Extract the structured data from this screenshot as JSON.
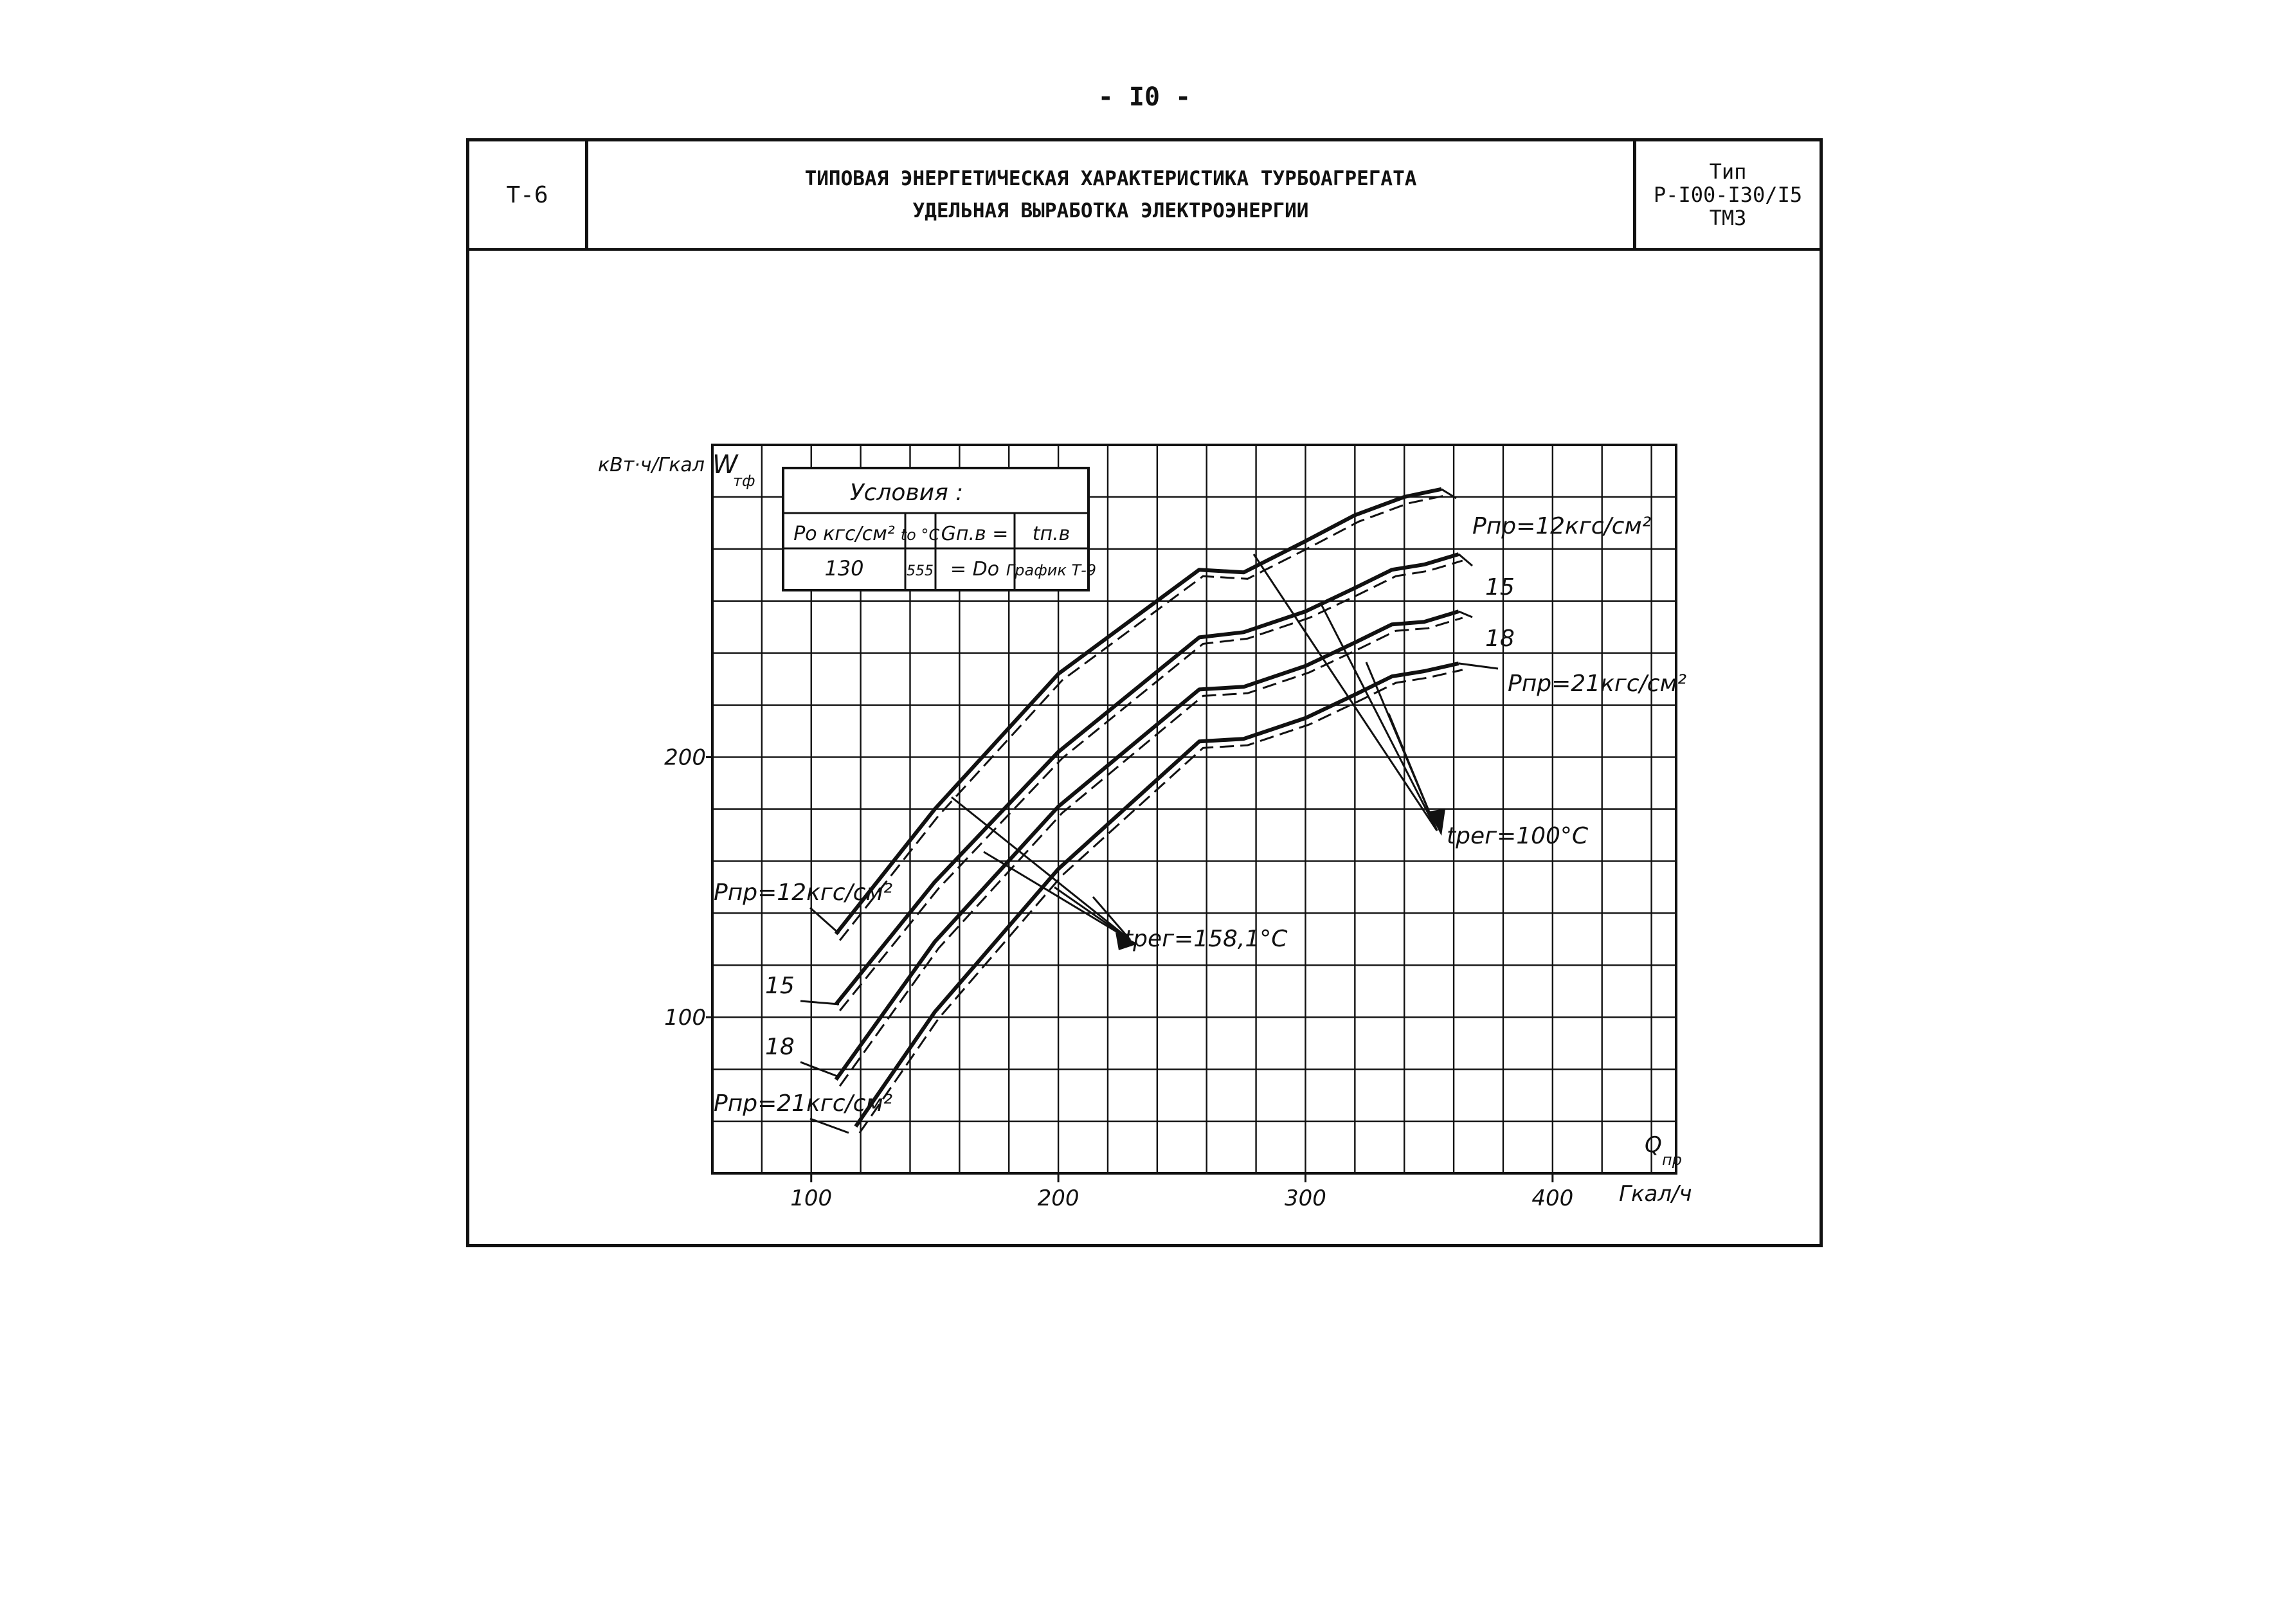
{
  "page": {
    "number": "- I0 -"
  },
  "header": {
    "code": "Т-6",
    "title_line1": "ТИПОВАЯ ЭНЕРГЕТИЧЕСКАЯ ХАРАКТЕРИСТИКА ТУРБОАГРЕГАТА",
    "title_line2": "УДЕЛЬНАЯ ВЫРАБОТКА ЭЛЕКТРОЭНЕРГИИ",
    "type_label": "Тип",
    "type_model": "Р-I00-I30/I5",
    "type_maker": "ТМЗ"
  },
  "conditions": {
    "title": "Условия :",
    "col1_header": "Pо кгс/см²",
    "col2_header": "tо °C",
    "col3_header": "Gп.в =",
    "col4_header": "tп.в",
    "col1_value": "130",
    "col2_value": "555",
    "col3_value": "= Dо",
    "col4_value": "График Т-9"
  },
  "chart_data": {
    "type": "line",
    "ylabel": "кВт·ч/Гкал",
    "ylabel_symbol": "W",
    "ylabel_symbol_sub": "тф",
    "xlabel": "Гкал/ч",
    "xlabel_symbol": "Q",
    "xlabel_symbol_sub": "пр",
    "xlim": [
      60,
      450
    ],
    "ylim": [
      40,
      320
    ],
    "x_ticks": [
      100,
      200,
      300,
      400
    ],
    "y_ticks": [
      100,
      200
    ],
    "grid": true,
    "series": [
      {
        "name": "Pпр=12кгс/см²",
        "label_left": "Pпр=12кгс/см²",
        "label_right": "Pпр=12кгс/см²",
        "x": [
          110,
          150,
          200,
          257,
          275,
          300,
          320,
          340,
          355
        ],
        "y": [
          132,
          180,
          232,
          272,
          271,
          283,
          293,
          300,
          303
        ]
      },
      {
        "name": "15",
        "label_left": "15",
        "label_right": "15",
        "x": [
          110,
          150,
          200,
          257,
          275,
          300,
          320,
          335,
          348,
          362
        ],
        "y": [
          105,
          152,
          202,
          246,
          248,
          256,
          265,
          272,
          274,
          278
        ]
      },
      {
        "name": "18",
        "label_left": "18",
        "label_right": "18",
        "x": [
          110,
          150,
          200,
          257,
          275,
          300,
          320,
          335,
          348,
          362
        ],
        "y": [
          76,
          129,
          181,
          226,
          227,
          235,
          244,
          251,
          252,
          256
        ]
      },
      {
        "name": "Pпр=21кгс/см²",
        "label_left": "Pпр=21кгс/см²",
        "label_right": "Pпр=21кгс/см²",
        "x": [
          118,
          150,
          200,
          257,
          275,
          300,
          320,
          335,
          348,
          362
        ],
        "y": [
          58,
          102,
          157,
          206,
          207,
          215,
          224,
          231,
          233,
          236
        ]
      }
    ],
    "annotations": {
      "t_reg_158": "tрег=158,1°C",
      "t_reg_100": "tрег=100°C"
    }
  }
}
